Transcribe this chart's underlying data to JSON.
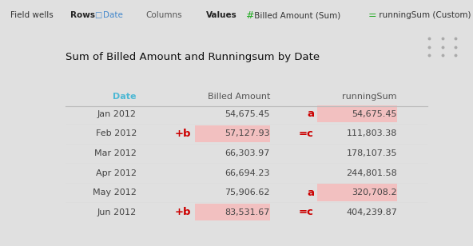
{
  "title": "Sum of Billed Amount and Runningsum by Date",
  "col_headers": [
    "Date",
    "Billed Amount",
    "runningSum"
  ],
  "rows": [
    {
      "date": "Jan 2012",
      "billed": "54,675.45",
      "running": "54,675.45",
      "billed_highlight": false,
      "running_highlight": true,
      "label_left": "",
      "label_mid": "a"
    },
    {
      "date": "Feb 2012",
      "billed": "57,127.93",
      "running": "111,803.38",
      "billed_highlight": true,
      "running_highlight": false,
      "label_left": "+b",
      "label_mid": "=c"
    },
    {
      "date": "Mar 2012",
      "billed": "66,303.97",
      "running": "178,107.35",
      "billed_highlight": false,
      "running_highlight": false,
      "label_left": "",
      "label_mid": ""
    },
    {
      "date": "Apr 2012",
      "billed": "66,694.23",
      "running": "244,801.58",
      "billed_highlight": false,
      "running_highlight": false,
      "label_left": "",
      "label_mid": ""
    },
    {
      "date": "May 2012",
      "billed": "75,906.62",
      "running": "320,708.2",
      "billed_highlight": false,
      "running_highlight": true,
      "label_left": "",
      "label_mid": "a"
    },
    {
      "date": "Jun 2012",
      "billed": "83,531.67",
      "running": "404,239.87",
      "billed_highlight": true,
      "running_highlight": false,
      "label_left": "+b",
      "label_mid": "=c"
    }
  ],
  "outer_bg": "#e0e0e0",
  "inner_bg": "#ffffff",
  "table_border_color": "#4db8d4",
  "col_header_date_color": "#4db8d4",
  "col_header_text_color": "#555555",
  "row_text_color": "#444444",
  "highlight_bg": "#f2c0c0",
  "label_color": "#cc0000",
  "dotted_color": "#aaaaaa",
  "topbar_bg": "#f0f0f0",
  "topbar_text_color": "#333333",
  "rows_color": "#222222",
  "hash_color": "#22aa22",
  "eq_color": "#22aa22",
  "date_icon_color": "#4488cc",
  "separator_color": "#cccccc",
  "row_sep_color": "#dddddd",
  "header_sep_color": "#bbbbbb"
}
